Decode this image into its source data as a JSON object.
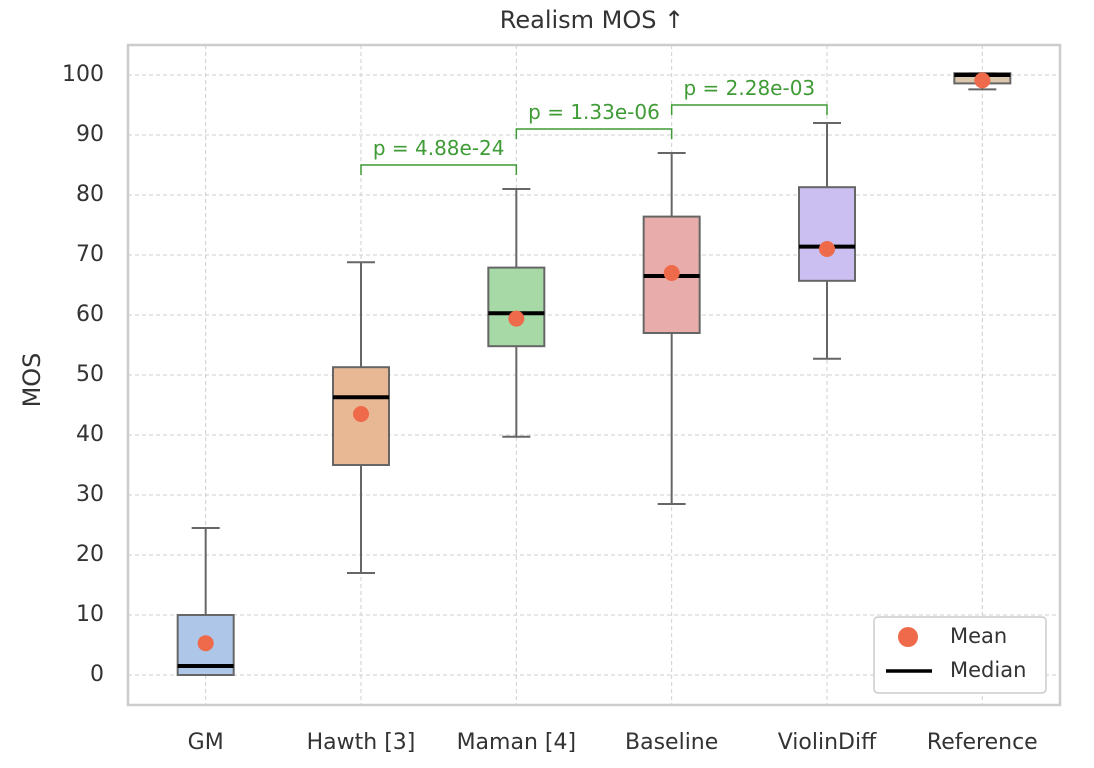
{
  "chart_data": {
    "type": "box",
    "title": "Realism MOS ↑",
    "xlabel": "",
    "ylabel": "MOS",
    "ylim": [
      -5,
      105
    ],
    "yticks": [
      0,
      10,
      20,
      30,
      40,
      50,
      60,
      70,
      80,
      90,
      100
    ],
    "grid": true,
    "legend_position": "bottom-right",
    "legend": [
      {
        "label": "Mean",
        "marker": "dot",
        "color": "#ee6a4a"
      },
      {
        "label": "Median",
        "marker": "line",
        "color": "#000000"
      }
    ],
    "categories": [
      "GM",
      "Hawth [3]",
      "Maman [4]",
      "Baseline",
      "ViolinDiff",
      "Reference"
    ],
    "boxes": [
      {
        "whislo": 0,
        "q1": 0,
        "med": 1.5,
        "q3": 10,
        "whishi": 24.5,
        "mean": 5.3,
        "color": "#aec6e8"
      },
      {
        "whislo": 17,
        "q1": 35,
        "med": 46.3,
        "q3": 51.3,
        "whishi": 68.8,
        "mean": 43.5,
        "color": "#e8b894"
      },
      {
        "whislo": 39.7,
        "q1": 54.8,
        "med": 60.3,
        "q3": 67.9,
        "whishi": 81,
        "mean": 59.4,
        "color": "#a6d9a6"
      },
      {
        "whislo": 28.5,
        "q1": 57,
        "med": 66.5,
        "q3": 76.4,
        "whishi": 87,
        "mean": 67,
        "color": "#e8adaa"
      },
      {
        "whislo": 52.7,
        "q1": 65.7,
        "med": 71.4,
        "q3": 81.3,
        "whishi": 92,
        "mean": 71,
        "color": "#cbbff2"
      },
      {
        "whislo": 97.6,
        "q1": 98.6,
        "med": 100,
        "q3": 100.3,
        "whishi": 100.3,
        "mean": 99.1,
        "color": "#d9c6ab"
      }
    ],
    "annotations": [
      {
        "from": 1,
        "to": 2,
        "y": 85,
        "text": "p = 4.88e-24"
      },
      {
        "from": 2,
        "to": 3,
        "y": 91,
        "text": "p = 1.33e-06"
      },
      {
        "from": 3,
        "to": 4,
        "y": 95,
        "text": "p = 2.28e-03"
      }
    ]
  }
}
